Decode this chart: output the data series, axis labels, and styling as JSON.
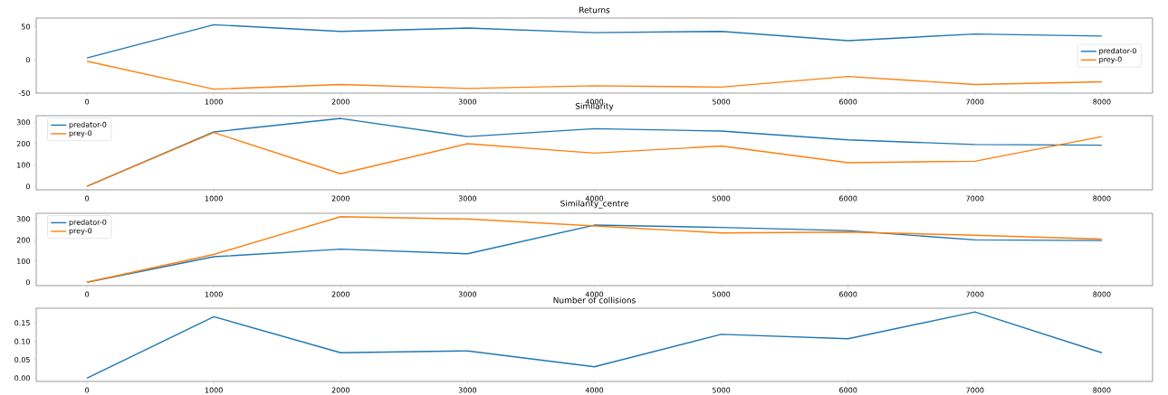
{
  "chart_data": [
    {
      "type": "line",
      "title": "Returns",
      "x": [
        0,
        1000,
        2000,
        3000,
        4000,
        5000,
        6000,
        7000,
        8000
      ],
      "xlim": [
        -400,
        8400
      ],
      "xticks": [
        0,
        1000,
        2000,
        3000,
        4000,
        5000,
        6000,
        7000,
        8000
      ],
      "ylim": [
        -50,
        63
      ],
      "yticks": [
        -50,
        0,
        50
      ],
      "legend": "right",
      "marker": "none",
      "series": [
        {
          "name": "predator-0",
          "color": "#1f77b4",
          "values": [
            3,
            53,
            43,
            48,
            41,
            43,
            29,
            39,
            36
          ]
        },
        {
          "name": "prey-0",
          "color": "#ff7f0e",
          "values": [
            -2,
            -44,
            -37,
            -43,
            -39,
            -41,
            -25,
            -37,
            -33
          ]
        }
      ]
    },
    {
      "type": "line",
      "title": "Similarity",
      "x": [
        0,
        1000,
        2000,
        3000,
        4000,
        5000,
        6000,
        7000,
        8000
      ],
      "xlim": [
        -400,
        8400
      ],
      "xticks": [
        0,
        1000,
        2000,
        3000,
        4000,
        5000,
        6000,
        7000,
        8000
      ],
      "ylim": [
        -16,
        331
      ],
      "yticks": [
        0,
        100,
        200,
        300
      ],
      "legend": "top left",
      "marker": "none",
      "series": [
        {
          "name": "predator-0",
          "color": "#1f77b4",
          "values": [
            0,
            255,
            318,
            233,
            270,
            259,
            218,
            196,
            193
          ]
        },
        {
          "name": "prey-0",
          "color": "#ff7f0e",
          "values": [
            0,
            252,
            59,
            200,
            156,
            189,
            111,
            118,
            233
          ]
        }
      ]
    },
    {
      "type": "line",
      "title": "Similarity_centre",
      "x": [
        0,
        1000,
        2000,
        3000,
        4000,
        5000,
        6000,
        7000,
        8000
      ],
      "xlim": [
        -400,
        8400
      ],
      "xticks": [
        0,
        1000,
        2000,
        3000,
        4000,
        5000,
        6000,
        7000,
        8000
      ],
      "ylim": [
        -16,
        327
      ],
      "yticks": [
        0,
        100,
        200,
        300
      ],
      "legend": "top left",
      "marker": "none",
      "series": [
        {
          "name": "predator-0",
          "color": "#1f77b4",
          "values": [
            0,
            121,
            157,
            135,
            271,
            260,
            245,
            201,
            198
          ]
        },
        {
          "name": "prey-0",
          "color": "#ff7f0e",
          "values": [
            0,
            132,
            311,
            300,
            267,
            234,
            238,
            223,
            205
          ]
        }
      ]
    },
    {
      "type": "line",
      "title": "Number of collisions",
      "x": [
        0,
        1000,
        2000,
        3000,
        4000,
        5000,
        6000,
        7000,
        8000
      ],
      "xlim": [
        -400,
        8400
      ],
      "xticks": [
        0,
        1000,
        2000,
        3000,
        4000,
        5000,
        6000,
        7000,
        8000
      ],
      "ylim": [
        -0.009,
        0.19
      ],
      "yticks": [
        {
          "value": 0,
          "label": "0.00"
        },
        {
          "value": 0.05,
          "label": "0.05"
        },
        {
          "value": 0.1,
          "label": "0.10"
        },
        {
          "value": 0.15,
          "label": "0.15"
        }
      ],
      "marker": "none",
      "series": [
        {
          "color": "#1f77b4",
          "values": [
            0,
            0.167,
            0.069,
            0.074,
            0.031,
            0.119,
            0.107,
            0.18,
            0.069
          ]
        }
      ]
    }
  ]
}
